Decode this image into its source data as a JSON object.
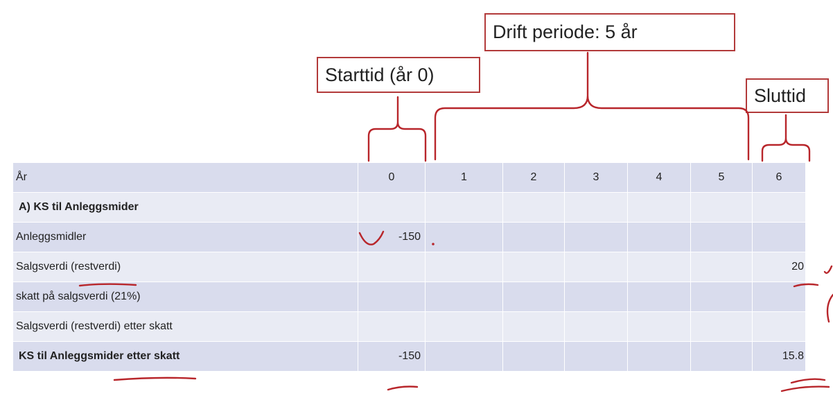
{
  "callouts": {
    "start": "Starttid (år 0)",
    "drift": "Drift periode: 5 år",
    "slutt": "Sluttid"
  },
  "table": {
    "header": {
      "label": "År",
      "cols": [
        "0",
        "1",
        "2",
        "3",
        "4",
        "5",
        "6"
      ]
    },
    "rows": [
      {
        "label": "A) KS til Anleggsmider",
        "values": [
          "",
          "",
          "",
          "",
          "",
          "",
          ""
        ]
      },
      {
        "label": "Anleggsmidler",
        "values": [
          "-150",
          "",
          "",
          "",
          "",
          "",
          ""
        ]
      },
      {
        "label": "Salgsverdi (restverdi)",
        "values": [
          "",
          "",
          "",
          "",
          "",
          "",
          "20"
        ]
      },
      {
        "label": "skatt på salgsverdi (21%)",
        "values": [
          "",
          "",
          "",
          "",
          "",
          "",
          ""
        ]
      },
      {
        "label": "Salgsverdi (restverdi) etter skatt",
        "values": [
          "",
          "",
          "",
          "",
          "",
          "",
          ""
        ]
      },
      {
        "label": "KS til Anleggsmider etter skatt",
        "values": [
          "-150",
          "",
          "",
          "",
          "",
          "",
          "15.8"
        ]
      }
    ]
  },
  "colors": {
    "annotation": "#b8262b",
    "table_light": "#e9ebf4",
    "table_dark": "#d9dced"
  }
}
